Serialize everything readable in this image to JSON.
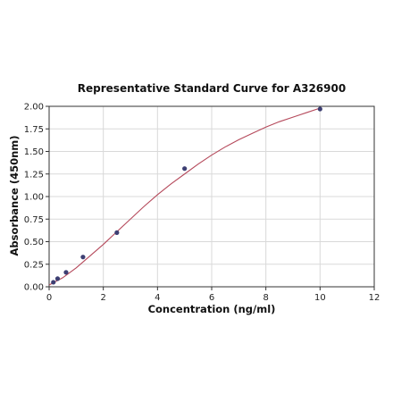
{
  "chart_data": {
    "type": "scatter",
    "title": "Representative Standard Curve for A326900",
    "xlabel": "Concentration (ng/ml)",
    "ylabel": "Absorbance (450nm)",
    "xlim": [
      0,
      12
    ],
    "ylim": [
      0,
      2.0
    ],
    "x_ticks": [
      "0",
      "2",
      "4",
      "6",
      "8",
      "10",
      "12"
    ],
    "y_ticks": [
      "0.00",
      "0.25",
      "0.50",
      "0.75",
      "1.00",
      "1.25",
      "1.50",
      "1.75",
      "2.00"
    ],
    "grid": true,
    "points": {
      "x": [
        0.156,
        0.313,
        0.625,
        1.25,
        2.5,
        5.0,
        10.0
      ],
      "y": [
        0.05,
        0.09,
        0.16,
        0.33,
        0.6,
        1.31,
        1.97
      ]
    },
    "fit_curve": {
      "type": "smooth fit",
      "x": [
        0,
        0.5,
        1,
        1.5,
        2,
        2.5,
        3,
        3.5,
        4,
        4.5,
        5,
        5.5,
        6,
        6.5,
        7,
        7.5,
        8,
        8.5,
        9,
        9.5,
        10
      ],
      "y": [
        0.02,
        0.1,
        0.21,
        0.34,
        0.47,
        0.61,
        0.75,
        0.89,
        1.02,
        1.14,
        1.25,
        1.36,
        1.46,
        1.55,
        1.63,
        1.7,
        1.77,
        1.83,
        1.88,
        1.93,
        1.98
      ]
    },
    "colors": {
      "curve": "#b5495b",
      "points": "#3d3f73",
      "grid": "#d9d9d9",
      "axis": "#333333"
    }
  }
}
